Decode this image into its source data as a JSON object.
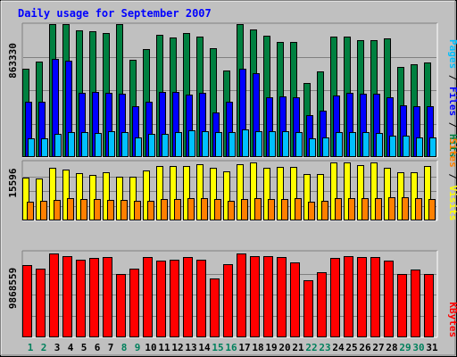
{
  "title": "Daily usage for September 2007",
  "colors": {
    "background": "#c0c0c0",
    "panel": "#c0c0c0",
    "hits": "#008040",
    "files": "#0000ff",
    "pages": "#00c0ff",
    "visits": "#ffff00",
    "sites": "#ff8000",
    "kbytes": "#ff0000",
    "title_text": "#0000ff",
    "weekday_label": "#000000",
    "weekend_label": "#00805c"
  },
  "panels": {
    "top": {
      "max_label": "863330",
      "legend": [
        {
          "text": "Pages",
          "color": "#00c0ff"
        },
        {
          "text": " / ",
          "color": "#000000"
        },
        {
          "text": "Files",
          "color": "#0000ff"
        },
        {
          "text": " / ",
          "color": "#000000"
        },
        {
          "text": "Hits",
          "color": "#008040"
        }
      ]
    },
    "middle": {
      "max_label": "15596",
      "legend": [
        {
          "text": "Sites",
          "color": "#ff8000"
        },
        {
          "text": " / ",
          "color": "#000000"
        },
        {
          "text": "Visits",
          "color": "#ffff00"
        }
      ]
    },
    "bottom": {
      "max_label": "9868559",
      "legend": [
        {
          "text": "KBytes",
          "color": "#ff0000"
        }
      ]
    }
  },
  "chart_data": {
    "type": "bar",
    "title": "Daily usage for September 2007",
    "categories": [
      "1",
      "2",
      "3",
      "4",
      "5",
      "6",
      "7",
      "8",
      "9",
      "10",
      "11",
      "12",
      "13",
      "14",
      "15",
      "16",
      "17",
      "18",
      "19",
      "20",
      "21",
      "22",
      "23",
      "24",
      "25",
      "26",
      "27",
      "28",
      "29",
      "30",
      "31"
    ],
    "weekend_days": [
      "1",
      "2",
      "8",
      "9",
      "15",
      "16",
      "22",
      "23",
      "29",
      "30"
    ],
    "groups": [
      {
        "panel": "top",
        "max": 863330,
        "series": [
          {
            "name": "Hits",
            "color": "#008040",
            "values": [
              573000,
              619000,
              863000,
              863000,
              821000,
              815000,
              808000,
              863000,
              633000,
              702000,
              794000,
              777000,
              805000,
              783000,
              707000,
              564000,
              863000,
              828000,
              790000,
              749000,
              750000,
              479000,
              555000,
              783000,
              784000,
              760000,
              760000,
              772000,
              586000,
              605000,
              612000
            ]
          },
          {
            "name": "Files",
            "color": "#0000ff",
            "values": [
              358000,
              358000,
              638000,
              626000,
              416000,
              423000,
              420000,
              413000,
              329000,
              358000,
              425000,
              425000,
              405000,
              416000,
              287000,
              358000,
              575000,
              542000,
              388000,
              396000,
              390000,
              275000,
              300000,
              399000,
              416000,
              413000,
              409000,
              387000,
              335000,
              332000,
              333000
            ]
          },
          {
            "name": "Pages",
            "color": "#00c0ff",
            "values": [
              120000,
              120000,
              150000,
              160000,
              160000,
              155000,
              170000,
              160000,
              130000,
              150000,
              150000,
              160000,
              175000,
              170000,
              160000,
              160000,
              180000,
              170000,
              170000,
              170000,
              160000,
              120000,
              130000,
              160000,
              160000,
              160000,
              155000,
              140000,
              140000,
              130000,
              125000
            ]
          }
        ]
      },
      {
        "panel": "middle",
        "max": 15596,
        "series": [
          {
            "name": "Visits",
            "color": "#ffff00",
            "values": [
              11600,
              11300,
              14100,
              13600,
              12600,
              12300,
              12900,
              11800,
              11800,
              13400,
              14600,
              14600,
              14600,
              15100,
              14100,
              13200,
              15100,
              15500,
              14200,
              14400,
              14300,
              12400,
              12500,
              15500,
              15500,
              14800,
              15500,
              14200,
              13000,
              13000,
              14600
            ]
          },
          {
            "name": "Sites",
            "color": "#ff8000",
            "values": [
              5150,
              5300,
              5500,
              5950,
              5650,
              5850,
              5500,
              5600,
              5200,
              5250,
              5650,
              5700,
              6000,
              6000,
              5750,
              5300,
              5850,
              5900,
              5850,
              5650,
              5900,
              5100,
              5250,
              6050,
              5950,
              5900,
              5900,
              6300,
              6300,
              6050,
              5850
            ]
          }
        ]
      },
      {
        "panel": "bottom",
        "max": 9868559,
        "series": [
          {
            "name": "KBytes",
            "color": "#ff0000",
            "values": [
              8420000,
              8000000,
              9750000,
              9500000,
              9010000,
              9200000,
              9310000,
              7420000,
              8000000,
              9300000,
              8920000,
              9000000,
              9400000,
              9050000,
              6860000,
              8540000,
              9800000,
              9500000,
              9500000,
              9350000,
              8760000,
              6700000,
              7560000,
              9250000,
              9500000,
              9400000,
              9400000,
              8920000,
              7400000,
              7900000,
              7400000
            ]
          }
        ]
      }
    ]
  }
}
